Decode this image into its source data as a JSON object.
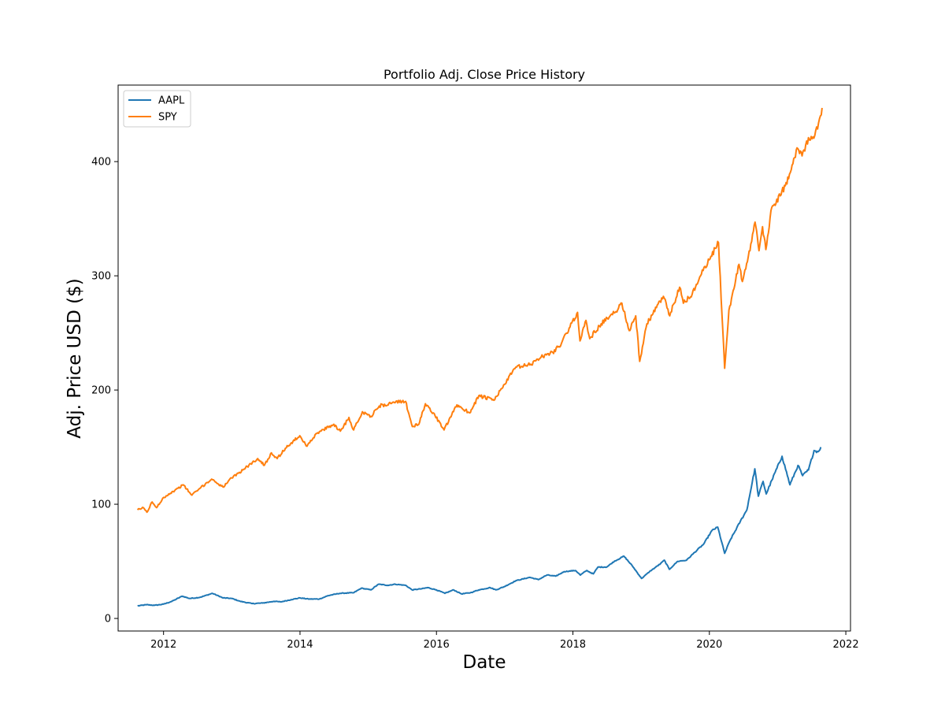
{
  "chart_data": {
    "type": "line",
    "title": "Portfolio Adj. Close Price History",
    "xlabel": "Date",
    "ylabel": "Adj. Price USD ($)",
    "x_ticks": [
      "2012",
      "2014",
      "2016",
      "2018",
      "2020",
      "2022"
    ],
    "y_ticks": [
      "0",
      "100",
      "200",
      "300",
      "400"
    ],
    "xlim": [
      "2011-05-03",
      "2022-01-26"
    ],
    "ylim": [
      -11,
      467
    ],
    "grid": false,
    "legend_position": "top-left",
    "series": [
      {
        "name": "AAPL",
        "color": "#1f77b4",
        "points": [
          [
            "2011-08-15",
            11
          ],
          [
            "2011-10-01",
            12
          ],
          [
            "2011-11-15",
            11.5
          ],
          [
            "2012-01-01",
            12.5
          ],
          [
            "2012-02-15",
            15
          ],
          [
            "2012-04-10",
            19.5
          ],
          [
            "2012-05-20",
            17.5
          ],
          [
            "2012-07-15",
            18.5
          ],
          [
            "2012-09-19",
            22
          ],
          [
            "2012-11-15",
            18
          ],
          [
            "2013-01-01",
            17.5
          ],
          [
            "2013-02-15",
            15
          ],
          [
            "2013-04-20",
            13
          ],
          [
            "2013-06-15",
            13.5
          ],
          [
            "2013-08-15",
            15
          ],
          [
            "2013-09-20",
            14.5
          ],
          [
            "2013-11-15",
            16.5
          ],
          [
            "2014-01-01",
            18
          ],
          [
            "2014-02-15",
            17
          ],
          [
            "2014-04-15",
            17
          ],
          [
            "2014-06-01",
            20
          ],
          [
            "2014-08-01",
            22
          ],
          [
            "2014-10-15",
            22.5
          ],
          [
            "2014-11-25",
            26.5
          ],
          [
            "2015-01-15",
            25
          ],
          [
            "2015-02-25",
            30
          ],
          [
            "2015-04-15",
            29
          ],
          [
            "2015-05-25",
            30
          ],
          [
            "2015-07-20",
            29
          ],
          [
            "2015-08-24",
            25
          ],
          [
            "2015-10-15",
            26
          ],
          [
            "2015-11-15",
            27
          ],
          [
            "2016-01-01",
            25
          ],
          [
            "2016-02-15",
            22
          ],
          [
            "2016-04-01",
            25
          ],
          [
            "2016-05-15",
            21.5
          ],
          [
            "2016-07-01",
            22.5
          ],
          [
            "2016-08-15",
            25
          ],
          [
            "2016-10-15",
            27
          ],
          [
            "2016-11-15",
            25
          ],
          [
            "2017-01-01",
            28
          ],
          [
            "2017-03-01",
            33
          ],
          [
            "2017-05-15",
            36
          ],
          [
            "2017-06-30",
            34
          ],
          [
            "2017-08-15",
            38
          ],
          [
            "2017-10-01",
            37
          ],
          [
            "2017-11-15",
            41
          ],
          [
            "2018-01-15",
            42
          ],
          [
            "2018-02-10",
            38
          ],
          [
            "2018-03-15",
            42
          ],
          [
            "2018-04-20",
            39
          ],
          [
            "2018-05-15",
            45
          ],
          [
            "2018-07-01",
            45
          ],
          [
            "2018-08-10",
            50
          ],
          [
            "2018-10-01",
            54.5
          ],
          [
            "2018-11-15",
            46
          ],
          [
            "2019-01-03",
            35
          ],
          [
            "2019-02-15",
            41
          ],
          [
            "2019-04-15",
            48
          ],
          [
            "2019-05-05",
            51
          ],
          [
            "2019-06-01",
            43
          ],
          [
            "2019-07-15",
            50
          ],
          [
            "2019-09-01",
            51
          ],
          [
            "2019-10-15",
            58
          ],
          [
            "2019-12-01",
            65
          ],
          [
            "2020-01-15",
            77
          ],
          [
            "2020-02-15",
            80
          ],
          [
            "2020-03-23",
            57
          ],
          [
            "2020-04-20",
            68
          ],
          [
            "2020-06-15",
            85
          ],
          [
            "2020-07-20",
            95
          ],
          [
            "2020-09-01",
            131
          ],
          [
            "2020-09-20",
            107
          ],
          [
            "2020-10-15",
            120
          ],
          [
            "2020-11-01",
            109
          ],
          [
            "2020-12-01",
            121
          ],
          [
            "2021-01-25",
            142
          ],
          [
            "2021-03-08",
            117
          ],
          [
            "2021-04-20",
            134
          ],
          [
            "2021-05-15",
            125
          ],
          [
            "2021-06-15",
            130
          ],
          [
            "2021-07-15",
            147
          ],
          [
            "2021-08-06",
            146
          ],
          [
            "2021-08-20",
            150
          ]
        ]
      },
      {
        "name": "SPY",
        "color": "#ff7f0e",
        "points": [
          [
            "2011-08-15",
            95
          ],
          [
            "2011-09-15",
            97
          ],
          [
            "2011-10-04",
            93
          ],
          [
            "2011-11-01",
            102
          ],
          [
            "2011-11-25",
            97
          ],
          [
            "2012-01-01",
            106
          ],
          [
            "2012-03-01",
            112
          ],
          [
            "2012-04-15",
            117
          ],
          [
            "2012-06-01",
            108
          ],
          [
            "2012-07-15",
            114
          ],
          [
            "2012-09-15",
            122
          ],
          [
            "2012-11-15",
            115
          ],
          [
            "2013-01-01",
            123
          ],
          [
            "2013-03-01",
            130
          ],
          [
            "2013-05-20",
            140
          ],
          [
            "2013-06-24",
            134
          ],
          [
            "2013-08-01",
            145
          ],
          [
            "2013-09-01",
            140
          ],
          [
            "2013-10-15",
            149
          ],
          [
            "2013-12-31",
            160
          ],
          [
            "2014-02-03",
            151
          ],
          [
            "2014-04-01",
            162
          ],
          [
            "2014-07-01",
            170
          ],
          [
            "2014-08-05",
            164
          ],
          [
            "2014-09-20",
            176
          ],
          [
            "2014-10-15",
            165
          ],
          [
            "2014-12-01",
            181
          ],
          [
            "2015-01-15",
            177
          ],
          [
            "2015-03-01",
            186
          ],
          [
            "2015-05-20",
            189
          ],
          [
            "2015-07-20",
            190
          ],
          [
            "2015-08-25",
            168
          ],
          [
            "2015-09-29",
            170
          ],
          [
            "2015-11-03",
            188
          ],
          [
            "2015-12-15",
            180
          ],
          [
            "2016-02-11",
            165
          ],
          [
            "2016-04-20",
            187
          ],
          [
            "2016-06-27",
            180
          ],
          [
            "2016-08-15",
            195
          ],
          [
            "2016-11-04",
            191
          ],
          [
            "2016-12-31",
            205
          ],
          [
            "2017-03-01",
            220
          ],
          [
            "2017-05-15",
            222
          ],
          [
            "2017-07-15",
            229
          ],
          [
            "2017-09-15",
            233
          ],
          [
            "2017-11-01",
            241
          ],
          [
            "2018-01-26",
            268
          ],
          [
            "2018-02-08",
            243
          ],
          [
            "2018-03-12",
            261
          ],
          [
            "2018-04-01",
            245
          ],
          [
            "2018-06-01",
            258
          ],
          [
            "2018-08-15",
            268
          ],
          [
            "2018-09-20",
            276
          ],
          [
            "2018-10-29",
            252
          ],
          [
            "2018-12-03",
            265
          ],
          [
            "2018-12-24",
            225
          ],
          [
            "2019-02-01",
            258
          ],
          [
            "2019-04-30",
            282
          ],
          [
            "2019-06-03",
            265
          ],
          [
            "2019-07-26",
            290
          ],
          [
            "2019-08-15",
            276
          ],
          [
            "2019-10-01",
            284
          ],
          [
            "2019-11-15",
            300
          ],
          [
            "2019-12-31",
            314
          ],
          [
            "2020-02-19",
            329
          ],
          [
            "2020-03-23",
            219
          ],
          [
            "2020-04-15",
            270
          ],
          [
            "2020-06-08",
            310
          ],
          [
            "2020-06-26",
            295
          ],
          [
            "2020-08-15",
            330
          ],
          [
            "2020-09-02",
            347
          ],
          [
            "2020-09-23",
            322
          ],
          [
            "2020-10-12",
            343
          ],
          [
            "2020-10-30",
            323
          ],
          [
            "2020-12-01",
            360
          ],
          [
            "2021-01-15",
            370
          ],
          [
            "2021-03-01",
            385
          ],
          [
            "2021-03-15",
            393
          ],
          [
            "2021-04-15",
            412
          ],
          [
            "2021-05-12",
            405
          ],
          [
            "2021-06-15",
            421
          ],
          [
            "2021-07-19",
            423
          ],
          [
            "2021-08-18",
            440
          ],
          [
            "2021-08-27",
            447
          ]
        ]
      }
    ]
  }
}
